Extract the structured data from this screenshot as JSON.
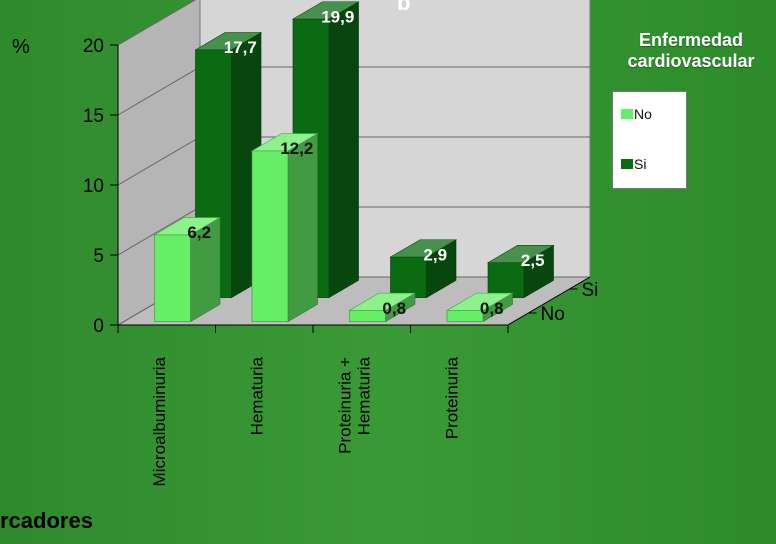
{
  "chart_data": {
    "type": "bar",
    "title_partial": "p",
    "ylabel": "%",
    "xlabel": "rcadores",
    "ylim": [
      0,
      20
    ],
    "yticks": [
      0,
      5,
      10,
      15,
      20
    ],
    "categories": [
      "Microalbuminuria",
      "Hematuria",
      "Proteinuria +\nHematuria",
      "Proteinuria"
    ],
    "depth_labels": [
      "No",
      "Si"
    ],
    "series": [
      {
        "name": "No",
        "values": [
          6.2,
          12.2,
          0.8,
          0.8
        ],
        "labels": [
          "6,2",
          "12,2",
          "0,8",
          "0,8"
        ],
        "color": "#66ee66"
      },
      {
        "name": "Si",
        "values": [
          17.7,
          19.9,
          2.9,
          2.5
        ],
        "labels": [
          "17,7",
          "19,9",
          "2,9",
          "2,5"
        ],
        "color": "#0b6b13"
      }
    ],
    "legend": {
      "title": "Enfermedad\ncardiovascular",
      "position": "right"
    },
    "grid": true
  },
  "colors": {
    "background": "#35922f",
    "wall": "#d6d6d6",
    "floor": "#bdbdbd",
    "grid": "#666666"
  }
}
